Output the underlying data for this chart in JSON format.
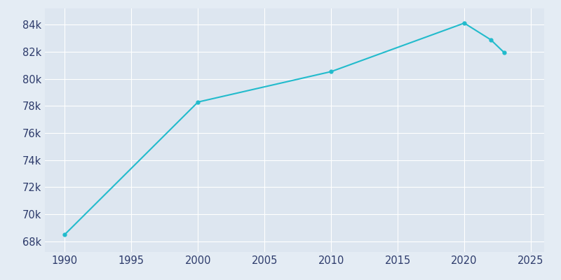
{
  "years": [
    1990,
    2000,
    2010,
    2020,
    2022,
    2023
  ],
  "population": [
    68500,
    78282,
    80530,
    84112,
    82877,
    81931
  ],
  "line_color": "#22BBCC",
  "marker": "o",
  "marker_size": 3.5,
  "bg_color": "#E4ECF4",
  "plot_bg_color": "#DDE6F0",
  "grid_color": "#FFFFFF",
  "xlim": [
    1988.5,
    2026
  ],
  "ylim": [
    67200,
    85200
  ],
  "ytick_values": [
    68000,
    70000,
    72000,
    74000,
    76000,
    78000,
    80000,
    82000,
    84000
  ],
  "xtick_values": [
    1990,
    1995,
    2000,
    2005,
    2010,
    2015,
    2020,
    2025
  ],
  "tick_label_color": "#2D3B6B",
  "tick_fontsize": 10.5,
  "linewidth": 1.5
}
